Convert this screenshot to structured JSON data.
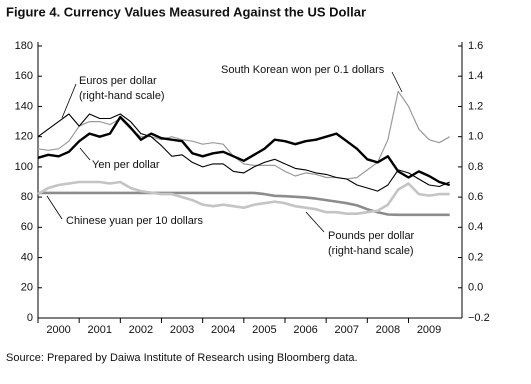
{
  "chart_data": {
    "type": "line",
    "title": "Figure 4. Currency Values Measured Against the US Dollar",
    "source": "Source: Prepared by Daiwa Institute of Research using Bloomberg data.",
    "x": [
      2000,
      2000.25,
      2000.5,
      2000.75,
      2001,
      2001.25,
      2001.5,
      2001.75,
      2002,
      2002.25,
      2002.5,
      2002.75,
      2003,
      2003.25,
      2003.5,
      2003.75,
      2004,
      2004.25,
      2004.5,
      2004.75,
      2005,
      2005.25,
      2005.5,
      2005.75,
      2006,
      2006.25,
      2006.5,
      2006.75,
      2007,
      2007.25,
      2007.5,
      2007.75,
      2008,
      2008.25,
      2008.5,
      2008.75,
      2009,
      2009.25,
      2009.5,
      2009.75,
      2010
    ],
    "xlim": [
      2000,
      2010.3
    ],
    "xticks": [
      2000,
      2001,
      2002,
      2003,
      2004,
      2005,
      2006,
      2007,
      2008,
      2009
    ],
    "ylim": [
      0,
      180
    ],
    "yticks": [
      0,
      20,
      40,
      60,
      80,
      100,
      120,
      140,
      160,
      180
    ],
    "y2lim": [
      -0.2,
      1.6
    ],
    "y2ticks": [
      {
        "value": -0.2,
        "label": "−0.2"
      },
      {
        "value": 0,
        "label": "0.0"
      },
      0.2,
      0.4,
      0.6,
      0.8,
      {
        "value": 1,
        "label": "1.0"
      },
      1.2,
      1.4,
      1.6
    ],
    "grid": false,
    "series": [
      {
        "name": "South Korean won per 0.1 dollars",
        "color": "#9a9a9a",
        "width": 1.2,
        "values": [
          112,
          111,
          112,
          117,
          127,
          130,
          130,
          128,
          132,
          125,
          120,
          120,
          118,
          120,
          118,
          117,
          115,
          116,
          115,
          107,
          102,
          101,
          101,
          101,
          97,
          94,
          96,
          95,
          93,
          93,
          92,
          93,
          98,
          103,
          118,
          150,
          140,
          125,
          118,
          116,
          120
        ]
      },
      {
        "name": "Chinese yuan per 10 dollars",
        "color": "#8c8c8c",
        "width": 2.6,
        "values": [
          82.8,
          82.8,
          82.8,
          82.8,
          82.8,
          82.8,
          82.8,
          82.8,
          82.8,
          82.8,
          82.8,
          82.8,
          82.8,
          82.8,
          82.8,
          82.8,
          82.8,
          82.8,
          82.8,
          82.8,
          82.8,
          82.8,
          82.0,
          80.9,
          80.6,
          80.2,
          79.8,
          79.0,
          78.0,
          77.0,
          76.0,
          74.5,
          72.0,
          70.0,
          68.5,
          68.3,
          68.3,
          68.3,
          68.3,
          68.3,
          68.3
        ]
      },
      {
        "name": "Pounds per dollar",
        "note": "(right-hand scale)",
        "axis": "y2",
        "color": "#c4c4c4",
        "width": 2.6,
        "values": [
          0.62,
          0.66,
          0.68,
          0.69,
          0.7,
          0.7,
          0.7,
          0.69,
          0.7,
          0.66,
          0.64,
          0.63,
          0.62,
          0.62,
          0.6,
          0.58,
          0.55,
          0.54,
          0.55,
          0.54,
          0.53,
          0.55,
          0.56,
          0.57,
          0.56,
          0.54,
          0.53,
          0.52,
          0.5,
          0.5,
          0.49,
          0.49,
          0.5,
          0.51,
          0.55,
          0.65,
          0.69,
          0.62,
          0.61,
          0.62,
          0.62
        ]
      },
      {
        "name": "Euros per dollar",
        "note": "(right-hand scale)",
        "axis": "y2",
        "color": "#000000",
        "width": 1.1,
        "values": [
          1.0,
          1.05,
          1.1,
          1.15,
          1.07,
          1.15,
          1.12,
          1.12,
          1.15,
          1.1,
          1.02,
          1.0,
          0.94,
          0.87,
          0.88,
          0.83,
          0.8,
          0.82,
          0.82,
          0.77,
          0.76,
          0.8,
          0.83,
          0.85,
          0.82,
          0.79,
          0.78,
          0.76,
          0.75,
          0.73,
          0.72,
          0.68,
          0.66,
          0.64,
          0.68,
          0.78,
          0.76,
          0.72,
          0.68,
          0.67,
          0.7
        ]
      },
      {
        "name": "Yen per dollar",
        "color": "#000000",
        "width": 2.4,
        "values": [
          106,
          108,
          107,
          110,
          117,
          122,
          120,
          122,
          133,
          126,
          118,
          122,
          119,
          118,
          117,
          109,
          107,
          109,
          110,
          107,
          104,
          108,
          112,
          118,
          117,
          115,
          117,
          118,
          120,
          122,
          117,
          112,
          105,
          103,
          107,
          97,
          93,
          97,
          94,
          90,
          88
        ]
      }
    ]
  }
}
